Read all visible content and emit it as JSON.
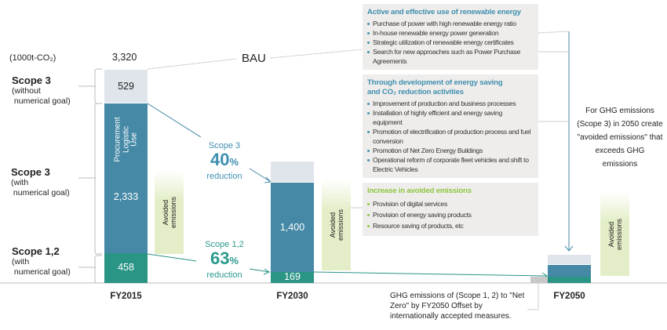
{
  "colors": {
    "scope3_nogoal": "#e0e5ec",
    "scope3_goal": "#4589a6",
    "scope12": "#2a9485",
    "offset": "#c8c8c8",
    "accent_blue": "#3f8fb0",
    "accent_green": "#8cc63f"
  },
  "chart_data": {
    "type": "bar",
    "stacked": true,
    "unit": "(1000t-CO₂)",
    "categories": [
      "FY2015",
      "FY2030",
      "FY2050"
    ],
    "series": [
      {
        "name": "Scope 1,2",
        "values": [
          458,
          169,
          100
        ],
        "labels": [
          "458",
          "169",
          ""
        ]
      },
      {
        "name": "Scope 3 (with numerical goal)",
        "values": [
          2333,
          1400,
          195
        ],
        "labels": [
          "2,333",
          "1,400",
          ""
        ]
      },
      {
        "name": "Scope 3 (without numerical goal)",
        "values": [
          529,
          330,
          160
        ],
        "labels": [
          "529",
          "",
          ""
        ]
      }
    ],
    "total_label": "3,320",
    "bau_label": "BAU",
    "bar_inner_label": [
      "Procurement",
      "Logistic",
      "Use"
    ],
    "ylim": [
      0,
      3320
    ]
  },
  "left_labels": [
    {
      "title": "Scope 3",
      "sub1": "(without",
      "sub2": " numerical goal)"
    },
    {
      "title": "Scope 3",
      "sub1": "(with",
      "sub2": " numerical goal)"
    },
    {
      "title": "Scope 1,2",
      "sub1": "(with",
      "sub2": " numerical goal)"
    }
  ],
  "reductions": {
    "scope3": {
      "scope": "Scope 3",
      "value": "40",
      "pct": "%",
      "word": "reduction"
    },
    "scope12": {
      "scope": "Scope 1,2",
      "value": "63",
      "pct": "%",
      "word": "reduction"
    }
  },
  "avoided_label_1": "Avoided",
  "avoided_label_2": "emissions",
  "boxes": [
    {
      "title": "Active and effective use of renewable energy",
      "items": [
        "Purchase of power with high renewable energy ratio",
        "In-house renewable energy power generation",
        "Strategic utilization of renewable energy certificates",
        "Search for new approaches such as Power Purchase Agreements"
      ]
    },
    {
      "title": "Through development of energy saving and CO₂ reduction activities",
      "items": [
        "Improvement of production and business processes",
        "Installation of highly efficient and energy saving equipment",
        "Promotion of electrification of production process and fuel conversion",
        "Promotion of Net Zero Energy Buildings",
        "Operational reform of corporate fleet vehicles and shift to Electric Vehicles"
      ]
    },
    {
      "title": "Increase in avoided emissions",
      "items": [
        "Provision of digital services",
        "Provision of energy saving products",
        "Resource saving of products, etc"
      ]
    }
  ],
  "note_2050": "For GHG emissions (Scope 3) in 2050 create \"avoided emissions\" that exceeds GHG emissions",
  "note_offset": "GHG emissions of (Scope 1, 2) to \"Net Zero\" by FY2050 Offset by internationally accepted measures."
}
